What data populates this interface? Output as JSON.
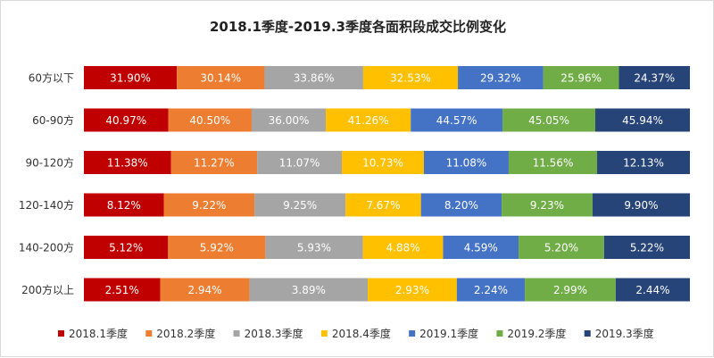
{
  "chart_data": {
    "type": "bar",
    "orientation": "horizontal",
    "stacked": true,
    "title": "2018.1季度-2019.3季度各面积段成交比例变化",
    "categories": [
      "60方以下",
      "60-90方",
      "90-120方",
      "120-140方",
      "140-200方",
      "200方以上"
    ],
    "series": [
      {
        "name": "2018.1季度",
        "color": "#c00000",
        "values": [
          31.9,
          40.97,
          11.38,
          8.12,
          5.12,
          2.51
        ],
        "labels": [
          "31.90%",
          "40.97%",
          "11.38%",
          "8.12%",
          "5.12%",
          "2.51%"
        ]
      },
      {
        "name": "2018.2季度",
        "color": "#ed7d31",
        "values": [
          30.14,
          40.5,
          11.27,
          9.22,
          5.92,
          2.94
        ],
        "labels": [
          "30.14%",
          "40.50%",
          "11.27%",
          "9.22%",
          "5.92%",
          "2.94%"
        ]
      },
      {
        "name": "2018.3季度",
        "color": "#a5a5a5",
        "values": [
          33.86,
          36.0,
          11.07,
          9.25,
          5.93,
          3.89
        ],
        "labels": [
          "33.86%",
          "36.00%",
          "11.07%",
          "9.25%",
          "5.93%",
          "3.89%"
        ]
      },
      {
        "name": "2018.4季度",
        "color": "#ffc000",
        "values": [
          32.53,
          41.26,
          10.73,
          7.67,
          4.88,
          2.93
        ],
        "labels": [
          "32.53%",
          "41.26%",
          "10.73%",
          "7.67%",
          "4.88%",
          "2.93%"
        ]
      },
      {
        "name": "2019.1季度",
        "color": "#4472c4",
        "values": [
          29.32,
          44.57,
          11.08,
          8.2,
          4.59,
          2.24
        ],
        "labels": [
          "29.32%",
          "44.57%",
          "11.08%",
          "8.20%",
          "4.59%",
          "2.24%"
        ]
      },
      {
        "name": "2019.2季度",
        "color": "#70ad47",
        "values": [
          25.96,
          45.05,
          11.56,
          9.23,
          5.2,
          2.99
        ],
        "labels": [
          "25.96%",
          "45.05%",
          "11.56%",
          "9.23%",
          "5.20%",
          "2.99%"
        ]
      },
      {
        "name": "2019.3季度",
        "color": "#264478",
        "values": [
          24.37,
          45.94,
          12.13,
          9.9,
          5.22,
          2.44
        ],
        "labels": [
          "24.37%",
          "45.94%",
          "12.13%",
          "9.90%",
          "5.22%",
          "2.44%"
        ]
      }
    ],
    "legend_position": "bottom",
    "grid": false
  }
}
